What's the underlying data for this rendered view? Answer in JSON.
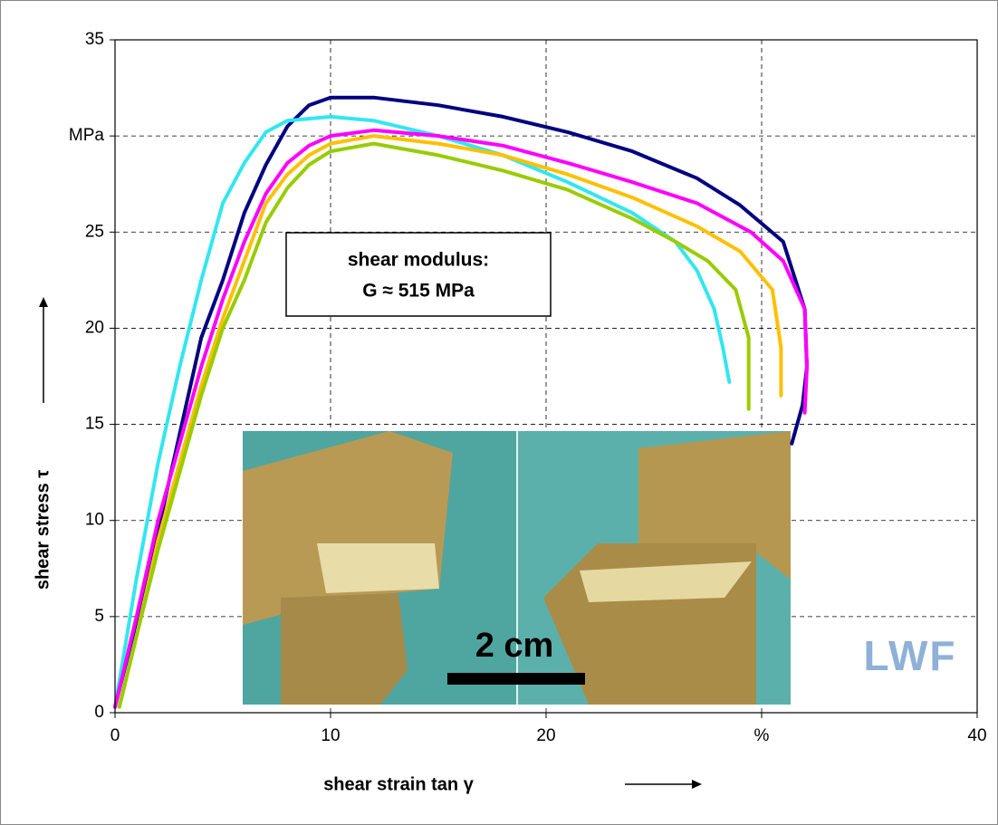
{
  "chart_data": {
    "type": "line",
    "x_label": "shear strain tan γ",
    "y_label": "shear stress τ",
    "annotation": [
      "shear modulus:",
      "G ≈ 515 MPa"
    ],
    "scale_label": "2 cm",
    "watermark": "LWF",
    "xlim": [
      0,
      40
    ],
    "ylim": [
      0,
      35
    ],
    "xticks": [
      0,
      10,
      20,
      {
        "value": 30,
        "label": "%"
      },
      40
    ],
    "yticks": [
      0,
      5,
      10,
      15,
      20,
      25,
      {
        "value": 30,
        "label": "MPa"
      },
      35
    ],
    "grid": true,
    "series": [
      {
        "color": "#000080",
        "x": [
          0,
          1.5,
          3,
          4,
          5,
          6,
          7,
          8,
          9,
          10,
          12,
          15,
          18,
          21,
          24,
          27,
          29,
          31,
          32,
          32.1,
          31.9,
          31.4
        ],
        "values": [
          0.3,
          7,
          14.5,
          19.5,
          22.5,
          26,
          28.5,
          30.5,
          31.6,
          32,
          32,
          31.6,
          31,
          30.2,
          29.2,
          27.8,
          26.4,
          24.5,
          21,
          18,
          16,
          14
        ]
      },
      {
        "color": "#33e6f0",
        "x": [
          0,
          1,
          2,
          3,
          4,
          5,
          6,
          7,
          8,
          10,
          12,
          15,
          18,
          21,
          24,
          26,
          27,
          27.8,
          28.2,
          28.5
        ],
        "values": [
          0.3,
          7,
          13,
          18,
          22.5,
          26.5,
          28.6,
          30.2,
          30.8,
          31,
          30.8,
          30,
          29,
          27.6,
          26,
          24.5,
          23,
          21,
          19,
          17.2
        ]
      },
      {
        "color": "#ff00ff",
        "x": [
          0,
          1,
          2,
          3,
          4,
          5,
          6,
          7,
          8,
          9,
          10,
          12,
          15,
          18,
          21,
          24,
          27,
          29.5,
          31,
          32,
          32.1,
          32
        ],
        "values": [
          0.3,
          5,
          10,
          14,
          18,
          21.5,
          24.5,
          27,
          28.6,
          29.5,
          30,
          30.3,
          30,
          29.5,
          28.6,
          27.6,
          26.5,
          25,
          23.5,
          21,
          18,
          15.6
        ]
      },
      {
        "color": "#ffc000",
        "x": [
          0.2,
          1,
          2,
          3,
          4,
          5,
          6,
          7,
          8,
          9,
          10,
          12,
          15,
          18,
          21,
          24,
          27,
          29,
          30.5,
          30.9,
          30.9
        ],
        "values": [
          0.3,
          4,
          9,
          13,
          17,
          20.5,
          23.5,
          26.5,
          28,
          29,
          29.6,
          30,
          29.6,
          29,
          28,
          26.8,
          25.3,
          24,
          22,
          19,
          16.5
        ]
      },
      {
        "color": "#99cc00",
        "x": [
          0.2,
          1,
          2,
          3,
          4,
          5,
          6,
          7,
          8,
          9,
          10,
          12,
          15,
          18,
          21,
          24,
          26,
          27.5,
          28.8,
          29.4,
          29.4
        ],
        "values": [
          0.3,
          4,
          8.5,
          12.5,
          16.5,
          20,
          22.5,
          25.5,
          27.3,
          28.5,
          29.2,
          29.6,
          29,
          28.2,
          27.2,
          25.7,
          24.5,
          23.5,
          22,
          19.5,
          15.8
        ]
      }
    ]
  }
}
